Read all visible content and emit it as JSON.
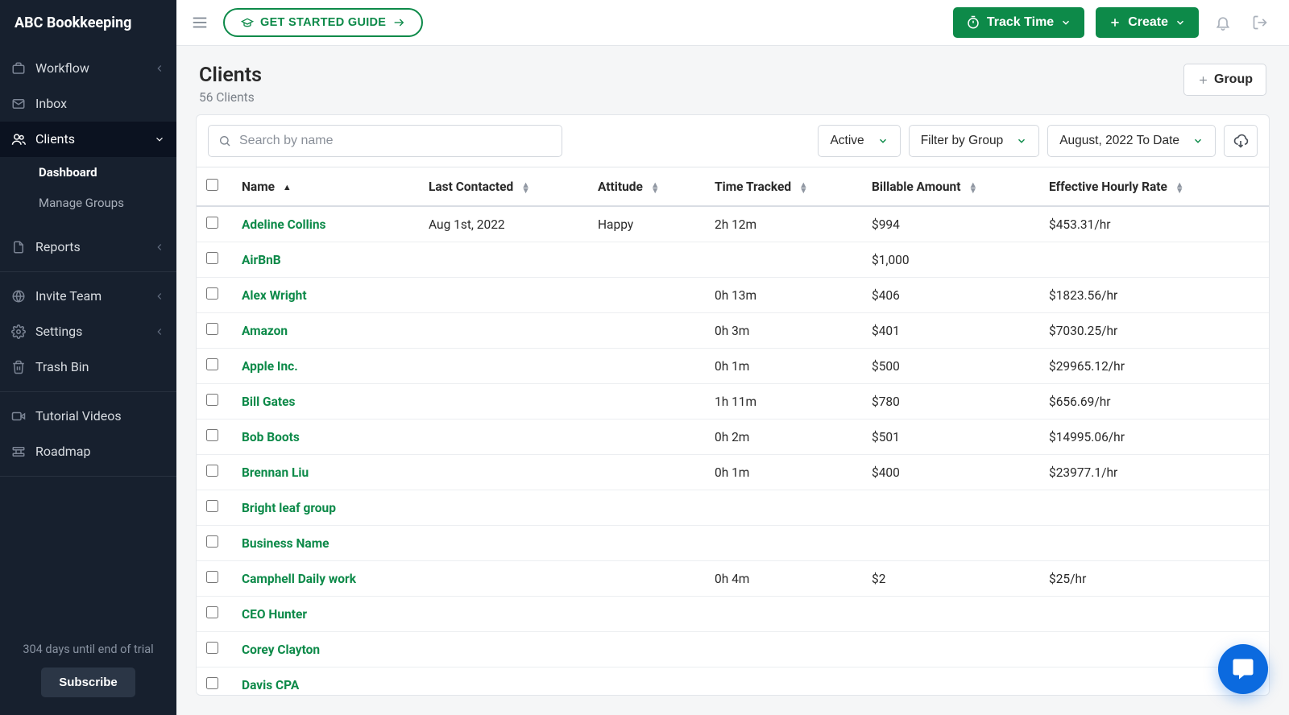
{
  "brand": "ABC Bookkeeping",
  "sidebar": {
    "items": [
      {
        "label": "Workflow",
        "expandable": true
      },
      {
        "label": "Inbox",
        "expandable": false
      },
      {
        "label": "Clients",
        "expandable": true,
        "active": true
      },
      {
        "label": "Reports",
        "expandable": true
      },
      {
        "label": "Invite Team",
        "expandable": true
      },
      {
        "label": "Settings",
        "expandable": true
      },
      {
        "label": "Trash Bin",
        "expandable": false
      },
      {
        "label": "Tutorial Videos",
        "expandable": false
      },
      {
        "label": "Roadmap",
        "expandable": false
      }
    ],
    "clients_sub": [
      {
        "label": "Dashboard",
        "active": true
      },
      {
        "label": "Manage Groups",
        "active": false
      }
    ],
    "trial_text": "304 days until end of trial",
    "subscribe_label": "Subscribe"
  },
  "topbar": {
    "guide_label": "GET STARTED GUIDE",
    "track_label": "Track Time",
    "create_label": "Create"
  },
  "page": {
    "title": "Clients",
    "subtitle": "56 Clients",
    "group_btn": "Group"
  },
  "filters": {
    "search_placeholder": "Search by name",
    "status": "Active",
    "group": "Filter by Group",
    "daterange": "August, 2022 To Date"
  },
  "table": {
    "columns": [
      "Name",
      "Last Contacted",
      "Attitude",
      "Time Tracked",
      "Billable Amount",
      "Effective Hourly Rate"
    ],
    "rows": [
      {
        "name": "Adeline Collins",
        "last_contacted": "Aug 1st, 2022",
        "attitude": "Happy",
        "time_tracked": "2h 12m",
        "billable": "$994",
        "rate": "$453.31/hr"
      },
      {
        "name": "AirBnB",
        "last_contacted": "",
        "attitude": "",
        "time_tracked": "",
        "billable": "$1,000",
        "rate": ""
      },
      {
        "name": "Alex Wright",
        "last_contacted": "",
        "attitude": "",
        "time_tracked": "0h 13m",
        "billable": "$406",
        "rate": "$1823.56/hr"
      },
      {
        "name": "Amazon",
        "last_contacted": "",
        "attitude": "",
        "time_tracked": "0h 3m",
        "billable": "$401",
        "rate": "$7030.25/hr"
      },
      {
        "name": "Apple Inc.",
        "last_contacted": "",
        "attitude": "",
        "time_tracked": "0h 1m",
        "billable": "$500",
        "rate": "$29965.12/hr"
      },
      {
        "name": "Bill Gates",
        "last_contacted": "",
        "attitude": "",
        "time_tracked": "1h 11m",
        "billable": "$780",
        "rate": "$656.69/hr"
      },
      {
        "name": "Bob Boots",
        "last_contacted": "",
        "attitude": "",
        "time_tracked": "0h 2m",
        "billable": "$501",
        "rate": "$14995.06/hr"
      },
      {
        "name": "Brennan Liu",
        "last_contacted": "",
        "attitude": "",
        "time_tracked": "0h 1m",
        "billable": "$400",
        "rate": "$23977.1/hr"
      },
      {
        "name": "Bright leaf group",
        "last_contacted": "",
        "attitude": "",
        "time_tracked": "",
        "billable": "",
        "rate": ""
      },
      {
        "name": "Business Name",
        "last_contacted": "",
        "attitude": "",
        "time_tracked": "",
        "billable": "",
        "rate": ""
      },
      {
        "name": "Camphell Daily work",
        "last_contacted": "",
        "attitude": "",
        "time_tracked": "0h 4m",
        "billable": "$2",
        "rate": "$25/hr"
      },
      {
        "name": "CEO Hunter",
        "last_contacted": "",
        "attitude": "",
        "time_tracked": "",
        "billable": "",
        "rate": ""
      },
      {
        "name": "Corey Clayton",
        "last_contacted": "",
        "attitude": "",
        "time_tracked": "",
        "billable": "",
        "rate": ""
      },
      {
        "name": "Davis CPA",
        "last_contacted": "",
        "attitude": "",
        "time_tracked": "",
        "billable": "",
        "rate": ""
      }
    ]
  },
  "colors": {
    "sidebar_bg": "#17202e",
    "accent_green": "#0d8a49",
    "chat_blue": "#0b6adf",
    "border": "#e3e6ea"
  }
}
